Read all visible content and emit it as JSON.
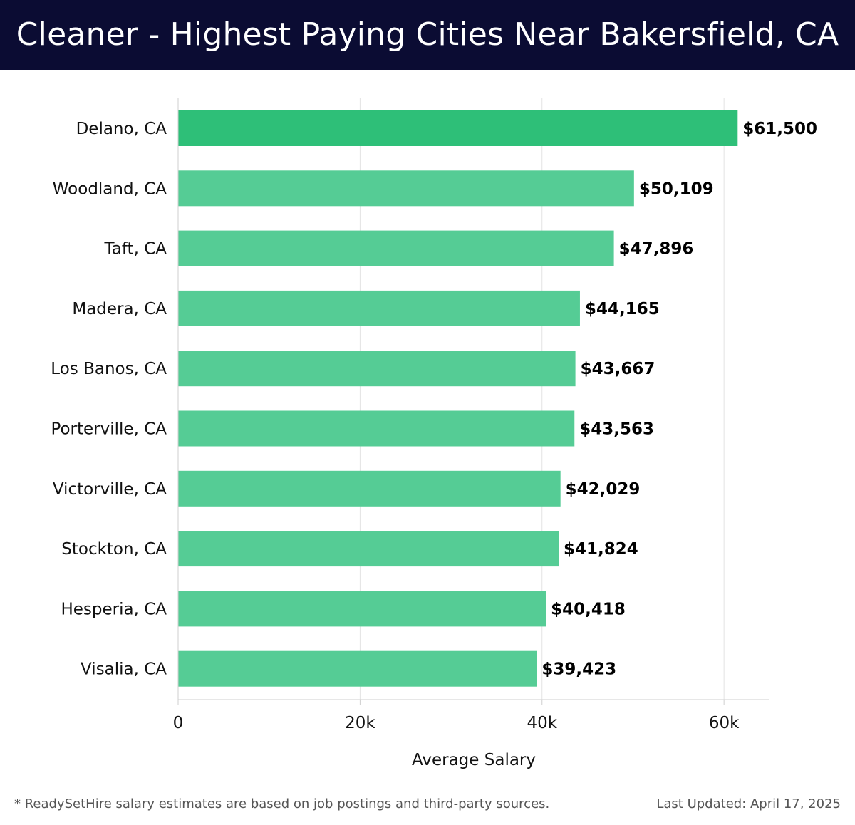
{
  "header": {
    "title": "Cleaner - Highest Paying Cities Near Bakersfield, CA"
  },
  "footer": {
    "note": "* ReadySetHire salary estimates are based on job postings and third-party sources.",
    "updated": "Last Updated: April 17, 2025"
  },
  "colors": {
    "header_bg": "#0b0c33",
    "bar_top": "#2ebf78",
    "bar_rest": "#55cc95"
  },
  "chart_data": {
    "type": "bar",
    "orientation": "horizontal",
    "title": "Cleaner - Highest Paying Cities Near Bakersfield, CA",
    "xlabel": "Average Salary",
    "ylabel": "",
    "categories": [
      "Delano, CA",
      "Woodland, CA",
      "Taft, CA",
      "Madera, CA",
      "Los Banos, CA",
      "Porterville, CA",
      "Victorville, CA",
      "Stockton, CA",
      "Hesperia, CA",
      "Visalia, CA"
    ],
    "values": [
      61500,
      50109,
      47896,
      44165,
      43667,
      43563,
      42029,
      41824,
      40418,
      39423
    ],
    "value_labels": [
      "$61,500",
      "$50,109",
      "$47,896",
      "$44,165",
      "$43,667",
      "$43,563",
      "$42,029",
      "$41,824",
      "$40,418",
      "$39,423"
    ],
    "xlim": [
      0,
      65000
    ],
    "xticks": [
      0,
      20000,
      40000,
      60000
    ],
    "xtick_labels": [
      "0",
      "20k",
      "40k",
      "60k"
    ],
    "grid": true,
    "legend": false
  }
}
